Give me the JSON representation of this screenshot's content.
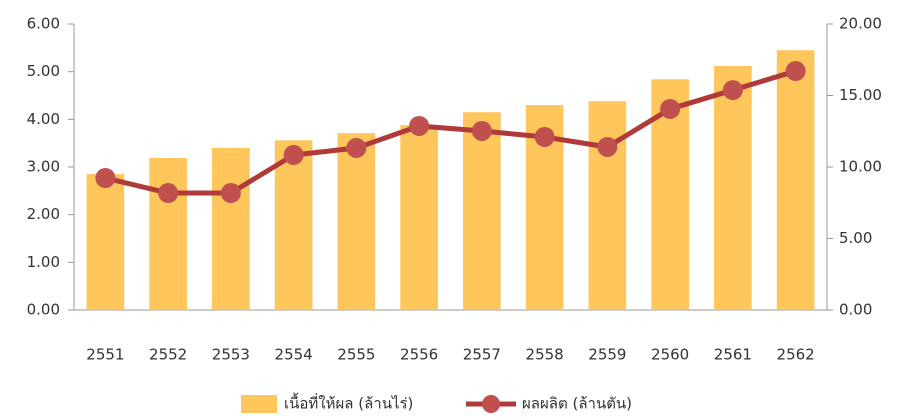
{
  "chart_data": {
    "type": "bar-line",
    "categories": [
      "2551",
      "2552",
      "2553",
      "2554",
      "2555",
      "2556",
      "2557",
      "2558",
      "2559",
      "2560",
      "2561",
      "2562"
    ],
    "series": [
      {
        "name": "เนื้อที่ให้ผล (ล้านไร่)",
        "type": "bar",
        "color": "#FFC65C",
        "values": [
          2.85,
          3.19,
          3.4,
          3.56,
          3.71,
          3.88,
          4.15,
          4.3,
          4.38,
          4.84,
          5.12,
          5.45
        ]
      },
      {
        "name": "ผลผลิต (ล้านตัน)",
        "type": "line",
        "axis": "y2",
        "color": "#B03A3A",
        "marker_color": "#C0504D",
        "values": [
          9.23,
          8.18,
          8.18,
          10.84,
          11.33,
          12.87,
          12.52,
          12.1,
          11.4,
          14.06,
          15.38,
          16.71
        ]
      }
    ],
    "ylim": [
      0,
      6
    ],
    "yticks": [
      {
        "value": 0,
        "label": "0.00"
      },
      {
        "value": 1,
        "label": "1.00"
      },
      {
        "value": 2,
        "label": "2.00"
      },
      {
        "value": 3,
        "label": "3.00"
      },
      {
        "value": 4,
        "label": "4.00"
      },
      {
        "value": 5,
        "label": "5.00"
      },
      {
        "value": 6,
        "label": "6.00"
      }
    ],
    "y2lim": [
      0,
      20
    ],
    "y2ticks": [
      {
        "value": 0,
        "label": "0.00"
      },
      {
        "value": 5,
        "label": "5.00"
      },
      {
        "value": 10,
        "label": "10.00"
      },
      {
        "value": 15,
        "label": "15.00"
      },
      {
        "value": 20,
        "label": "20.00"
      }
    ],
    "legend": "bottom"
  }
}
